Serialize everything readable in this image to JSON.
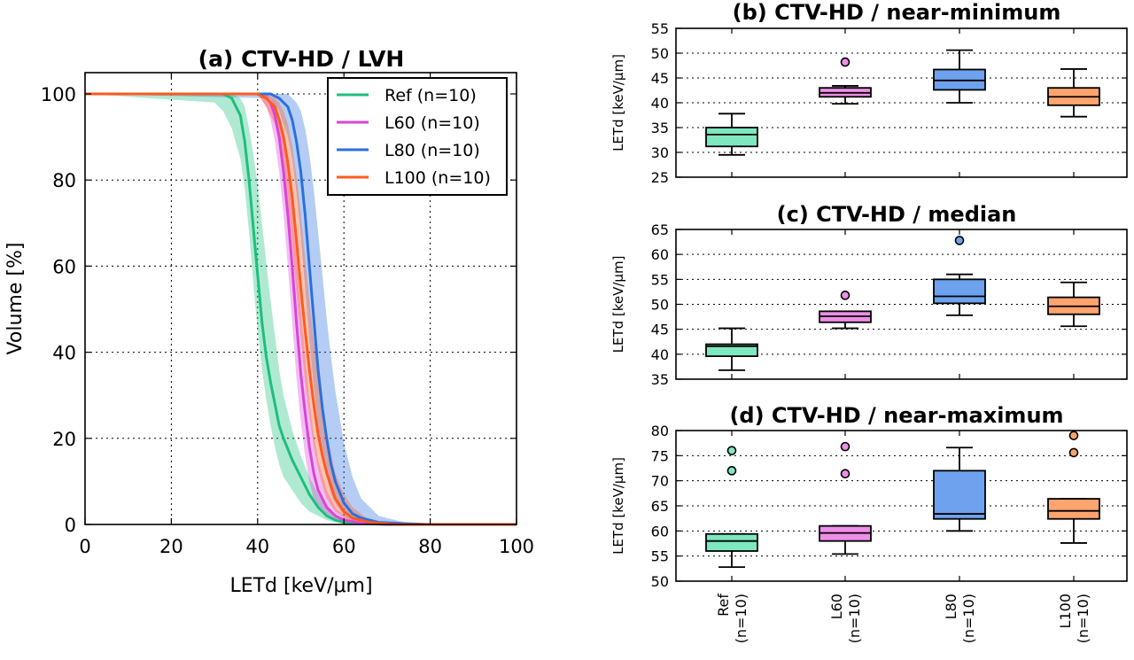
{
  "chart_data": [
    {
      "id": "a",
      "type": "line",
      "title": "(a) CTV-HD / LVH",
      "xlabel": "LETd [keV/μm]",
      "ylabel": "Volume [%]",
      "xlim": [
        0,
        100
      ],
      "ylim": [
        0,
        100
      ],
      "xticks": [
        "0",
        "20",
        "40",
        "60",
        "80",
        "100"
      ],
      "yticks": [
        "0",
        "20",
        "40",
        "60",
        "80",
        "100"
      ],
      "grid": true,
      "legend_position": "top-right",
      "series": [
        {
          "name": "Ref (n=10)",
          "color": "#1dbf7d",
          "x": [
            0,
            30,
            32,
            34,
            36,
            37,
            38,
            39,
            40,
            41,
            42,
            43,
            44,
            45,
            46,
            48,
            50,
            52,
            54,
            56,
            58,
            60,
            64,
            70,
            100
          ],
          "y": [
            100,
            100,
            100,
            99,
            95,
            89,
            80,
            69,
            58,
            47,
            39,
            33,
            28,
            23,
            20,
            15,
            11,
            7,
            4,
            2,
            1,
            0.5,
            0.2,
            0,
            0
          ],
          "band_upper": [
            100,
            100,
            100,
            100,
            99,
            97,
            92,
            86,
            79,
            70,
            61,
            52,
            44,
            36,
            30,
            22,
            16,
            11,
            7,
            4,
            2,
            1,
            0.3,
            0,
            0
          ],
          "band_lower": [
            100,
            98,
            96,
            92,
            85,
            78,
            68,
            56,
            45,
            36,
            29,
            23,
            18,
            14,
            11,
            8,
            5,
            3,
            2,
            1,
            0.5,
            0.2,
            0,
            0,
            0
          ]
        },
        {
          "name": "L60 (n=10)",
          "color": "#d944d9",
          "x": [
            0,
            40,
            42,
            43,
            44,
            45,
            46,
            47,
            48,
            49,
            50,
            51,
            52,
            53,
            54,
            56,
            58,
            60,
            64,
            70,
            100
          ],
          "y": [
            100,
            100,
            99,
            98,
            95,
            90,
            82,
            72,
            60,
            47,
            35,
            26,
            18,
            12,
            8,
            4,
            2,
            1,
            0.3,
            0,
            0
          ],
          "band_upper": [
            100,
            100,
            100,
            99,
            98,
            95,
            90,
            83,
            73,
            62,
            50,
            39,
            29,
            21,
            15,
            8,
            4,
            2,
            0.5,
            0,
            0
          ],
          "band_lower": [
            100,
            100,
            97,
            94,
            89,
            82,
            72,
            60,
            47,
            34,
            24,
            16,
            10,
            6,
            4,
            2,
            1,
            0.5,
            0.1,
            0,
            0
          ]
        },
        {
          "name": "L80 (n=10)",
          "color": "#2b6fe0",
          "x": [
            0,
            43,
            45,
            47,
            48,
            49,
            50,
            51,
            52,
            53,
            54,
            55,
            56,
            57,
            58,
            60,
            62,
            64,
            68,
            74,
            80,
            92,
            100
          ],
          "y": [
            100,
            100,
            99,
            97,
            94,
            89,
            82,
            72,
            60,
            48,
            36,
            27,
            20,
            14,
            10,
            5,
            2.5,
            1.5,
            0.5,
            0.2,
            0,
            0,
            0
          ],
          "band_upper": [
            100,
            100,
            100,
            100,
            99,
            98,
            96,
            92,
            86,
            78,
            68,
            58,
            48,
            39,
            31,
            19,
            11,
            6,
            2,
            0.5,
            0.2,
            0,
            0
          ],
          "band_lower": [
            100,
            99,
            96,
            90,
            85,
            77,
            67,
            55,
            43,
            32,
            23,
            16,
            11,
            7,
            5,
            2,
            1,
            0.5,
            0.1,
            0,
            0,
            0,
            0
          ]
        },
        {
          "name": "L100 (n=10)",
          "color": "#ff5a1f",
          "x": [
            0,
            40,
            42,
            44,
            45,
            46,
            47,
            48,
            49,
            50,
            51,
            52,
            53,
            54,
            55,
            56,
            58,
            60,
            62,
            66,
            72,
            100
          ],
          "y": [
            100,
            100,
            99,
            97,
            94,
            90,
            84,
            76,
            66,
            55,
            45,
            36,
            28,
            21,
            16,
            12,
            6,
            3,
            1.5,
            0.5,
            0,
            0
          ],
          "band_upper": [
            100,
            100,
            100,
            99,
            98,
            96,
            93,
            88,
            81,
            72,
            62,
            52,
            43,
            34,
            27,
            21,
            12,
            7,
            4,
            1,
            0.2,
            0
          ],
          "band_lower": [
            100,
            100,
            97,
            93,
            89,
            83,
            75,
            65,
            54,
            43,
            33,
            25,
            18,
            13,
            9,
            6,
            3,
            1.5,
            0.5,
            0.1,
            0,
            0
          ]
        }
      ]
    },
    {
      "id": "b",
      "type": "box",
      "title": "(b) CTV-HD / near-minimum",
      "ylabel": "LETd [keV/μm]",
      "ylim": [
        25,
        55
      ],
      "yticks": [
        "25",
        "30",
        "35",
        "40",
        "45",
        "50",
        "55"
      ],
      "grid": true,
      "categories": [
        "Ref\n(n=10)",
        "L60\n(n=10)",
        "L80\n(n=10)",
        "L100\n(n=10)"
      ],
      "boxes": [
        {
          "name": "Ref",
          "color": "#7ee8c0",
          "whisker_low": 29.5,
          "q1": 31.2,
          "median": 33.6,
          "q3": 35.0,
          "whisker_high": 37.8,
          "outliers": []
        },
        {
          "name": "L60",
          "color": "#ee8ee8",
          "whisker_low": 39.8,
          "q1": 41.2,
          "median": 42.0,
          "q3": 43.0,
          "whisker_high": 43.4,
          "outliers": [
            48.2
          ]
        },
        {
          "name": "L80",
          "color": "#6ea2ee",
          "whisker_low": 40.0,
          "q1": 42.6,
          "median": 44.5,
          "q3": 46.7,
          "whisker_high": 50.6,
          "outliers": []
        },
        {
          "name": "L100",
          "color": "#ffa46e",
          "whisker_low": 37.2,
          "q1": 39.5,
          "median": 41.2,
          "q3": 43.0,
          "whisker_high": 46.8,
          "outliers": []
        }
      ]
    },
    {
      "id": "c",
      "type": "box",
      "title": "(c) CTV-HD / median",
      "ylabel": "LETd [keV/μm]",
      "ylim": [
        35,
        65
      ],
      "yticks": [
        "35",
        "40",
        "45",
        "50",
        "55",
        "60",
        "65"
      ],
      "grid": true,
      "categories": [
        "Ref\n(n=10)",
        "L60\n(n=10)",
        "L80\n(n=10)",
        "L100\n(n=10)"
      ],
      "boxes": [
        {
          "name": "Ref",
          "color": "#7ee8c0",
          "whisker_low": 36.8,
          "q1": 39.6,
          "median": 41.6,
          "q3": 42.0,
          "whisker_high": 45.2,
          "outliers": []
        },
        {
          "name": "L60",
          "color": "#ee8ee8",
          "whisker_low": 45.2,
          "q1": 46.4,
          "median": 47.6,
          "q3": 48.6,
          "whisker_high": 48.6,
          "outliers": [
            51.8
          ]
        },
        {
          "name": "L80",
          "color": "#6ea2ee",
          "whisker_low": 47.8,
          "q1": 50.2,
          "median": 51.6,
          "q3": 55.0,
          "whisker_high": 56.0,
          "outliers": [
            62.8
          ]
        },
        {
          "name": "L100",
          "color": "#ffa46e",
          "whisker_low": 45.6,
          "q1": 48.0,
          "median": 49.6,
          "q3": 51.4,
          "whisker_high": 54.4,
          "outliers": []
        }
      ]
    },
    {
      "id": "d",
      "type": "box",
      "title": "(d) CTV-HD / near-maximum",
      "ylabel": "LETd [keV/μm]",
      "ylim": [
        50,
        80
      ],
      "yticks": [
        "50",
        "55",
        "60",
        "65",
        "70",
        "75",
        "80"
      ],
      "grid": true,
      "categories": [
        "Ref\n(n=10)",
        "L60\n(n=10)",
        "L80\n(n=10)",
        "L100\n(n=10)"
      ],
      "boxes": [
        {
          "name": "Ref",
          "color": "#7ee8c0",
          "whisker_low": 52.8,
          "q1": 56.0,
          "median": 58.0,
          "q3": 59.4,
          "whisker_high": 59.4,
          "outliers": [
            72.0,
            76.0
          ]
        },
        {
          "name": "L60",
          "color": "#ee8ee8",
          "whisker_low": 55.4,
          "q1": 58.0,
          "median": 59.6,
          "q3": 61.0,
          "whisker_high": 61.0,
          "outliers": [
            71.4,
            76.8
          ]
        },
        {
          "name": "L80",
          "color": "#6ea2ee",
          "whisker_low": 60.0,
          "q1": 62.4,
          "median": 63.4,
          "q3": 72.0,
          "whisker_high": 76.6,
          "outliers": []
        },
        {
          "name": "L100",
          "color": "#ffa46e",
          "whisker_low": 57.6,
          "q1": 62.4,
          "median": 64.0,
          "q3": 66.4,
          "whisker_high": 66.4,
          "outliers": [
            75.6,
            79.0
          ]
        }
      ]
    }
  ]
}
